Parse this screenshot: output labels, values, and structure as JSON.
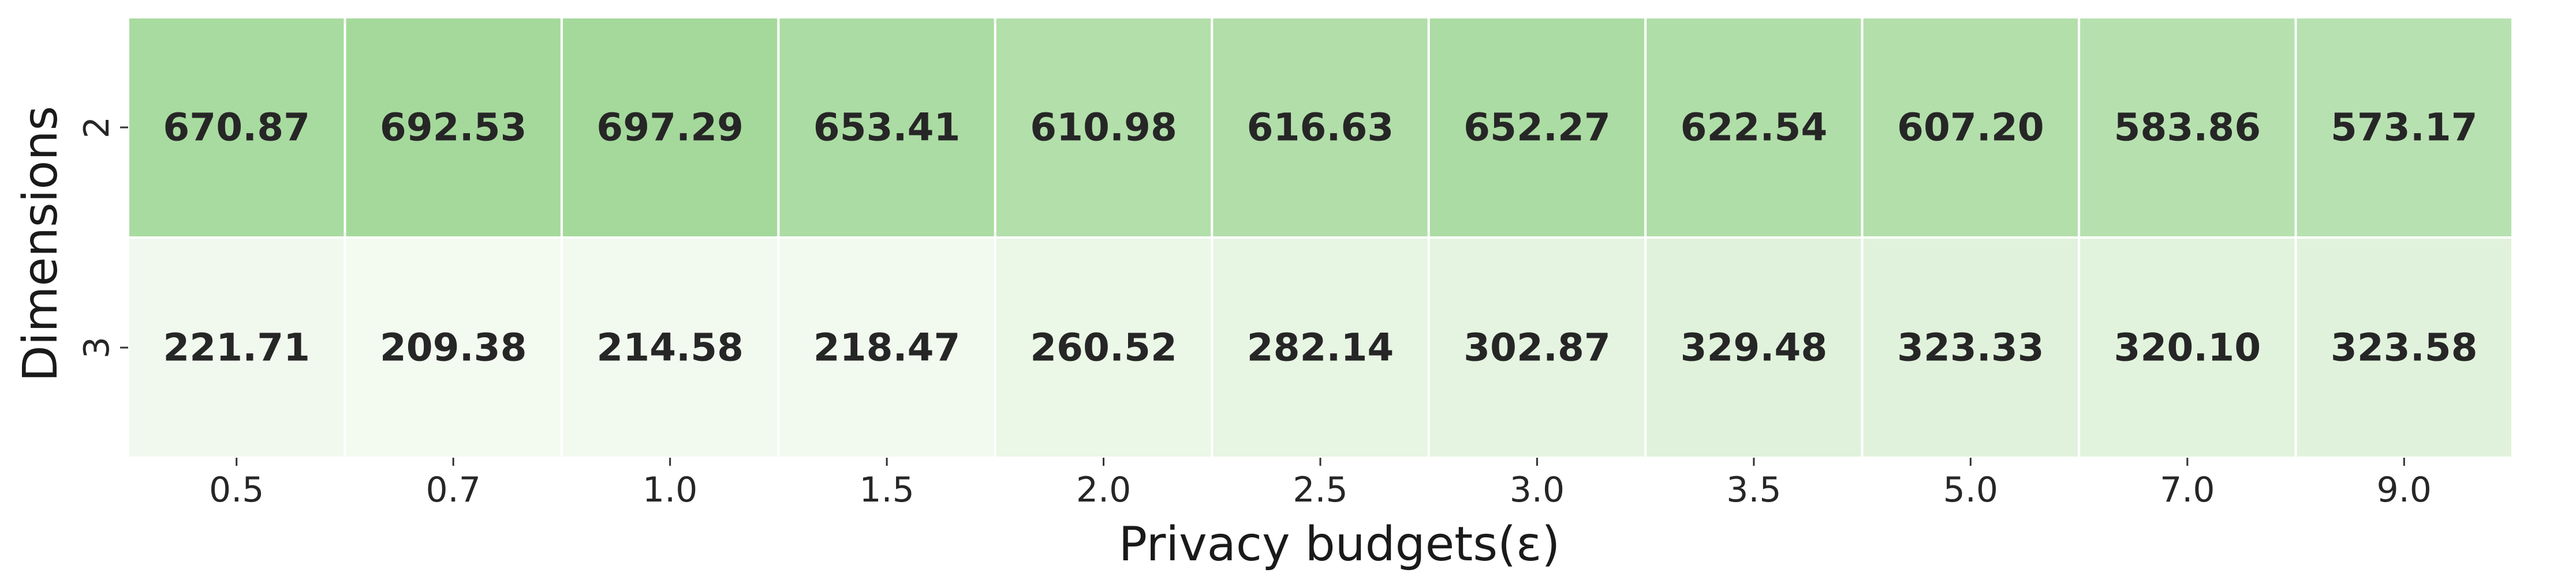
{
  "chart_data": {
    "type": "heatmap",
    "title": "",
    "xlabel": "Privacy budgets(ε)",
    "ylabel": "Dimensions",
    "x_categories": [
      "0.5",
      "0.7",
      "1.0",
      "1.5",
      "2.0",
      "2.5",
      "3.0",
      "3.5",
      "5.0",
      "7.0",
      "9.0"
    ],
    "y_categories": [
      "2",
      "3"
    ],
    "values": [
      [
        670.87,
        692.53,
        697.29,
        653.41,
        610.98,
        616.63,
        652.27,
        622.54,
        607.2,
        583.86,
        573.17
      ],
      [
        221.71,
        209.38,
        214.58,
        218.47,
        260.52,
        282.14,
        302.87,
        329.48,
        323.33,
        320.1,
        323.58
      ]
    ],
    "value_labels": [
      [
        "670.87",
        "692.53",
        "697.29",
        "653.41",
        "610.98",
        "616.63",
        "652.27",
        "622.54",
        "607.20",
        "583.86",
        "573.17"
      ],
      [
        "221.71",
        "209.38",
        "214.58",
        "218.47",
        "260.52",
        "282.14",
        "302.87",
        "329.48",
        "323.33",
        "320.10",
        "323.58"
      ]
    ],
    "colormap": {
      "low": "#f3faf0",
      "high": "#a4d99b"
    },
    "colorbar": false,
    "grid_lines": "white"
  }
}
